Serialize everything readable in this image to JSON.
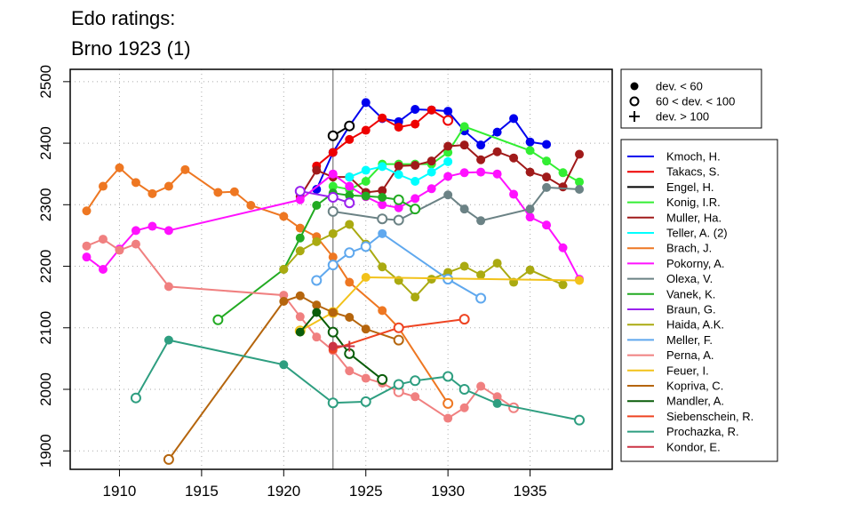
{
  "title_lines": [
    "Edo ratings:",
    "Brno 1923 (1)"
  ],
  "chart_data": {
    "type": "line",
    "xlim": [
      1907,
      1940
    ],
    "ylim": [
      1870,
      2520
    ],
    "x_ticks": [
      1910,
      1915,
      1920,
      1925,
      1930,
      1935
    ],
    "y_ticks": [
      1900,
      2000,
      2100,
      2200,
      2300,
      2400,
      2500
    ],
    "grid": true,
    "event_year": 1923,
    "legend_placement": "right",
    "dev_legend": [
      {
        "marker": "filled",
        "label": "dev. < 60"
      },
      {
        "marker": "open",
        "label": "60 < dev. < 100"
      },
      {
        "marker": "plus",
        "label": "dev. > 100"
      }
    ],
    "series": [
      {
        "name": "Kmoch, H.",
        "color": "#0000ee",
        "points": [
          [
            1922,
            2325,
            "f"
          ],
          [
            1923,
            2385,
            "f"
          ],
          [
            1924,
            2428,
            "f"
          ],
          [
            1925,
            2466,
            "f"
          ],
          [
            1926,
            2440,
            "f"
          ],
          [
            1927,
            2435,
            "f"
          ],
          [
            1928,
            2455,
            "f"
          ],
          [
            1929,
            2454,
            "f"
          ],
          [
            1930,
            2452,
            "f"
          ],
          [
            1931,
            2420,
            "f"
          ],
          [
            1932,
            2397,
            "f"
          ],
          [
            1933,
            2418,
            "f"
          ],
          [
            1934,
            2440,
            "f"
          ],
          [
            1935,
            2402,
            "f"
          ],
          [
            1936,
            2398,
            "f"
          ]
        ]
      },
      {
        "name": "Takacs, S.",
        "color": "#ee0000",
        "points": [
          [
            1922,
            2363,
            "f"
          ],
          [
            1923,
            2385,
            "f"
          ],
          [
            1924,
            2406,
            "f"
          ],
          [
            1925,
            2421,
            "f"
          ],
          [
            1926,
            2441,
            "f"
          ],
          [
            1927,
            2426,
            "f"
          ],
          [
            1928,
            2431,
            "f"
          ],
          [
            1929,
            2454,
            "f"
          ],
          [
            1930,
            2437,
            "o"
          ]
        ]
      },
      {
        "name": "Engel, H.",
        "color": "#000000",
        "points": [
          [
            1923,
            2412,
            "o"
          ],
          [
            1924,
            2428,
            "o"
          ]
        ]
      },
      {
        "name": "Konig, I.R.",
        "color": "#33ee33",
        "points": [
          [
            1923,
            2330,
            "f"
          ],
          [
            1924,
            2325,
            "f"
          ],
          [
            1925,
            2338,
            "f"
          ],
          [
            1926,
            2366,
            "f"
          ],
          [
            1927,
            2366,
            "f"
          ],
          [
            1928,
            2366,
            "f"
          ],
          [
            1929,
            2366,
            "f"
          ],
          [
            1930,
            2385,
            "f"
          ],
          [
            1931,
            2427,
            "f"
          ],
          [
            1935,
            2388,
            "f"
          ],
          [
            1936,
            2371,
            "f"
          ],
          [
            1937,
            2352,
            "f"
          ],
          [
            1938,
            2337,
            "f"
          ]
        ]
      },
      {
        "name": "Muller, Ha.",
        "color": "#a01a1a",
        "points": [
          [
            1921,
            2313,
            "f"
          ],
          [
            1922,
            2356,
            "f"
          ],
          [
            1923,
            2345,
            "f"
          ],
          [
            1924,
            2345,
            "f"
          ],
          [
            1925,
            2320,
            "f"
          ],
          [
            1926,
            2323,
            "f"
          ],
          [
            1927,
            2363,
            "f"
          ],
          [
            1928,
            2364,
            "f"
          ],
          [
            1929,
            2371,
            "f"
          ],
          [
            1930,
            2395,
            "f"
          ],
          [
            1931,
            2397,
            "f"
          ],
          [
            1932,
            2373,
            "f"
          ],
          [
            1933,
            2386,
            "f"
          ],
          [
            1934,
            2376,
            "f"
          ],
          [
            1935,
            2353,
            "f"
          ],
          [
            1936,
            2345,
            "f"
          ],
          [
            1937,
            2329,
            "f"
          ],
          [
            1938,
            2382,
            "f"
          ]
        ]
      },
      {
        "name": "Teller, A. (2)",
        "color": "#00ffff",
        "points": [
          [
            1924,
            2345,
            "f"
          ],
          [
            1925,
            2356,
            "f"
          ],
          [
            1926,
            2362,
            "f"
          ],
          [
            1927,
            2349,
            "f"
          ],
          [
            1928,
            2338,
            "f"
          ],
          [
            1929,
            2353,
            "f"
          ],
          [
            1930,
            2370,
            "f"
          ]
        ]
      },
      {
        "name": "Brach, J.",
        "color": "#ee7722",
        "points": [
          [
            1908,
            2290,
            "f"
          ],
          [
            1909,
            2330,
            "f"
          ],
          [
            1910,
            2360,
            "f"
          ],
          [
            1911,
            2336,
            "f"
          ],
          [
            1912,
            2318,
            "f"
          ],
          [
            1913,
            2330,
            "f"
          ],
          [
            1914,
            2357,
            "f"
          ],
          [
            1916,
            2320,
            "f"
          ],
          [
            1917,
            2321,
            "f"
          ],
          [
            1918,
            2299,
            "f"
          ],
          [
            1920,
            2281,
            "f"
          ],
          [
            1921,
            2262,
            "f"
          ],
          [
            1922,
            2248,
            "f"
          ],
          [
            1923,
            2215,
            "f"
          ],
          [
            1924,
            2174,
            "f"
          ],
          [
            1926,
            2128,
            "f"
          ],
          [
            1927,
            2100,
            "f"
          ],
          [
            1930,
            1977,
            "o"
          ]
        ]
      },
      {
        "name": "Pokorny, A.",
        "color": "#ff11ff",
        "points": [
          [
            1908,
            2215,
            "f"
          ],
          [
            1909,
            2195,
            "f"
          ],
          [
            1910,
            2228,
            "f"
          ],
          [
            1911,
            2258,
            "f"
          ],
          [
            1912,
            2265,
            "f"
          ],
          [
            1913,
            2258,
            "f"
          ],
          [
            1921,
            2308,
            "f"
          ],
          [
            1923,
            2350,
            "f"
          ],
          [
            1924,
            2330,
            "f"
          ],
          [
            1925,
            2313,
            "f"
          ],
          [
            1926,
            2300,
            "f"
          ],
          [
            1927,
            2295,
            "f"
          ],
          [
            1928,
            2310,
            "f"
          ],
          [
            1929,
            2326,
            "f"
          ],
          [
            1930,
            2346,
            "f"
          ],
          [
            1931,
            2352,
            "f"
          ],
          [
            1932,
            2353,
            "f"
          ],
          [
            1933,
            2350,
            "f"
          ],
          [
            1934,
            2317,
            "f"
          ],
          [
            1935,
            2280,
            "f"
          ],
          [
            1936,
            2267,
            "f"
          ],
          [
            1937,
            2230,
            "f"
          ],
          [
            1938,
            2179,
            "f"
          ]
        ]
      },
      {
        "name": "Olexa, V.",
        "color": "#6b8285",
        "points": [
          [
            1923,
            2289,
            "o"
          ],
          [
            1926,
            2277,
            "o"
          ],
          [
            1927,
            2275,
            "o"
          ],
          [
            1930,
            2316,
            "f"
          ],
          [
            1931,
            2293,
            "f"
          ],
          [
            1932,
            2274,
            "f"
          ],
          [
            1935,
            2293,
            "f"
          ],
          [
            1936,
            2328,
            "f"
          ],
          [
            1938,
            2325,
            "f"
          ]
        ]
      },
      {
        "name": "Vanek, K.",
        "color": "#22aa22",
        "points": [
          [
            1916,
            2113,
            "o"
          ],
          [
            1920,
            2195,
            "f"
          ],
          [
            1921,
            2246,
            "f"
          ],
          [
            1922,
            2299,
            "f"
          ],
          [
            1923,
            2319,
            "f"
          ],
          [
            1924,
            2315,
            "f"
          ],
          [
            1925,
            2314,
            "f"
          ],
          [
            1926,
            2312,
            "f"
          ],
          [
            1927,
            2308,
            "o"
          ],
          [
            1928,
            2293,
            "o"
          ]
        ]
      },
      {
        "name": "Braun, G.",
        "color": "#9a22ee",
        "points": [
          [
            1921,
            2322,
            "o"
          ],
          [
            1923,
            2312,
            "o"
          ],
          [
            1924,
            2303,
            "o"
          ]
        ]
      },
      {
        "name": "Haida, A.K.",
        "color": "#aaaa11",
        "points": [
          [
            1920,
            2195,
            "f"
          ],
          [
            1921,
            2225,
            "f"
          ],
          [
            1922,
            2240,
            "f"
          ],
          [
            1923,
            2253,
            "f"
          ],
          [
            1924,
            2268,
            "f"
          ],
          [
            1925,
            2236,
            "f"
          ],
          [
            1926,
            2199,
            "f"
          ],
          [
            1927,
            2177,
            "f"
          ],
          [
            1928,
            2150,
            "f"
          ],
          [
            1929,
            2179,
            "f"
          ],
          [
            1930,
            2190,
            "f"
          ],
          [
            1931,
            2200,
            "f"
          ],
          [
            1932,
            2186,
            "f"
          ],
          [
            1933,
            2205,
            "f"
          ],
          [
            1934,
            2174,
            "f"
          ],
          [
            1935,
            2194,
            "f"
          ],
          [
            1937,
            2170,
            "f"
          ]
        ]
      },
      {
        "name": "Meller, F.",
        "color": "#5fa8ee",
        "points": [
          [
            1922,
            2177,
            "o"
          ],
          [
            1923,
            2202,
            "o"
          ],
          [
            1924,
            2222,
            "o"
          ],
          [
            1925,
            2232,
            "o"
          ],
          [
            1926,
            2253,
            "f"
          ],
          [
            1930,
            2179,
            "o"
          ],
          [
            1932,
            2148,
            "o"
          ]
        ]
      },
      {
        "name": "Perna, A.",
        "color": "#f08080",
        "points": [
          [
            1908,
            2233,
            "f"
          ],
          [
            1909,
            2244,
            "f"
          ],
          [
            1910,
            2226,
            "f"
          ],
          [
            1911,
            2236,
            "f"
          ],
          [
            1913,
            2167,
            "f"
          ],
          [
            1920,
            2153,
            "f"
          ],
          [
            1921,
            2118,
            "f"
          ],
          [
            1922,
            2085,
            "f"
          ],
          [
            1923,
            2063,
            "f"
          ],
          [
            1924,
            2030,
            "f"
          ],
          [
            1925,
            2018,
            "f"
          ],
          [
            1926,
            2010,
            "f"
          ],
          [
            1927,
            1996,
            "o"
          ],
          [
            1928,
            1988,
            "f"
          ],
          [
            1930,
            1953,
            "f"
          ],
          [
            1931,
            1970,
            "f"
          ],
          [
            1932,
            2005,
            "f"
          ],
          [
            1933,
            1988,
            "f"
          ],
          [
            1934,
            1970,
            "o"
          ]
        ]
      },
      {
        "name": "Feuer, I.",
        "color": "#f2c21a",
        "points": [
          [
            1921,
            2095,
            "o"
          ],
          [
            1923,
            2125,
            "o"
          ],
          [
            1925,
            2182,
            "f"
          ],
          [
            1938,
            2177,
            "f"
          ]
        ]
      },
      {
        "name": "Kopriva, C.",
        "color": "#b5650d",
        "points": [
          [
            1913,
            1886,
            "o"
          ],
          [
            1920,
            2143,
            "f"
          ],
          [
            1921,
            2152,
            "f"
          ],
          [
            1922,
            2137,
            "f"
          ],
          [
            1923,
            2125,
            "f"
          ],
          [
            1924,
            2117,
            "f"
          ],
          [
            1925,
            2098,
            "f"
          ],
          [
            1927,
            2080,
            "o"
          ]
        ]
      },
      {
        "name": "Mandler, A.",
        "color": "#0a5d0a",
        "points": [
          [
            1921,
            2093,
            "f"
          ],
          [
            1922,
            2125,
            "f"
          ],
          [
            1923,
            2093,
            "o"
          ],
          [
            1924,
            2058,
            "o"
          ],
          [
            1926,
            2016,
            "o"
          ]
        ]
      },
      {
        "name": "Siebenschein, R.",
        "color": "#ee4422",
        "points": [
          [
            1923,
            2065,
            "f"
          ],
          [
            1927,
            2100,
            "o"
          ],
          [
            1931,
            2114,
            "o"
          ]
        ]
      },
      {
        "name": "Prochazka, R.",
        "color": "#2e9e80",
        "points": [
          [
            1911,
            1986,
            "o"
          ],
          [
            1913,
            2080,
            "f"
          ],
          [
            1920,
            2040,
            "f"
          ],
          [
            1923,
            1978,
            "o"
          ],
          [
            1925,
            1980,
            "o"
          ],
          [
            1927,
            2008,
            "o"
          ],
          [
            1928,
            2014,
            "o"
          ],
          [
            1930,
            2021,
            "o"
          ],
          [
            1931,
            2000,
            "o"
          ],
          [
            1933,
            1977,
            "f"
          ],
          [
            1938,
            1950,
            "o"
          ]
        ]
      },
      {
        "name": "Kondor, E.",
        "color": "#cc3344",
        "points": [
          [
            1923,
            2070,
            "f"
          ],
          [
            1924,
            2070,
            "p"
          ]
        ]
      }
    ]
  }
}
